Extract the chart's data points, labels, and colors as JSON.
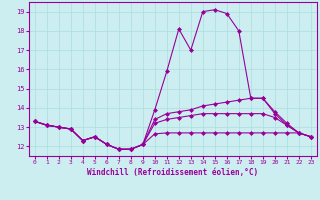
{
  "xlabel": "Windchill (Refroidissement éolien,°C)",
  "bg_color": "#cceef0",
  "line_color": "#990099",
  "grid_color": "#aadddd",
  "xlim": [
    -0.5,
    23.5
  ],
  "ylim": [
    11.5,
    19.5
  ],
  "yticks": [
    12,
    13,
    14,
    15,
    16,
    17,
    18,
    19
  ],
  "xticks": [
    0,
    1,
    2,
    3,
    4,
    5,
    6,
    7,
    8,
    9,
    10,
    11,
    12,
    13,
    14,
    15,
    16,
    17,
    18,
    19,
    20,
    21,
    22,
    23
  ],
  "series": [
    [
      13.3,
      13.1,
      13.0,
      12.9,
      12.3,
      12.5,
      12.1,
      11.85,
      11.85,
      12.1,
      13.9,
      15.9,
      18.1,
      17.0,
      19.0,
      19.1,
      18.9,
      18.0,
      14.5,
      14.5,
      13.7,
      13.1,
      12.7,
      12.5
    ],
    [
      13.3,
      13.1,
      13.0,
      12.9,
      12.3,
      12.5,
      12.1,
      11.85,
      11.85,
      12.1,
      13.4,
      13.7,
      13.8,
      13.9,
      14.1,
      14.2,
      14.3,
      14.4,
      14.5,
      14.5,
      13.8,
      13.2,
      12.7,
      12.5
    ],
    [
      13.3,
      13.1,
      13.0,
      12.9,
      12.3,
      12.5,
      12.1,
      11.85,
      11.85,
      12.1,
      13.2,
      13.4,
      13.5,
      13.6,
      13.7,
      13.7,
      13.7,
      13.7,
      13.7,
      13.7,
      13.5,
      13.1,
      12.7,
      12.5
    ],
    [
      13.3,
      13.1,
      13.0,
      12.9,
      12.3,
      12.5,
      12.1,
      11.85,
      11.85,
      12.1,
      12.65,
      12.7,
      12.7,
      12.7,
      12.7,
      12.7,
      12.7,
      12.7,
      12.7,
      12.7,
      12.7,
      12.7,
      12.7,
      12.5
    ]
  ]
}
